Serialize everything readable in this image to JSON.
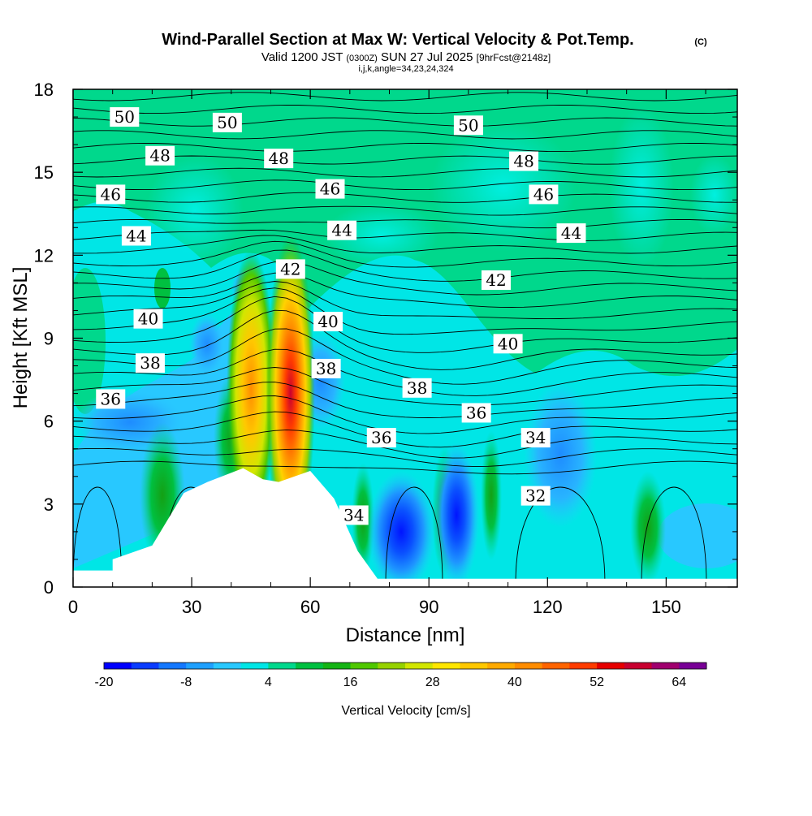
{
  "header": {
    "title": "Wind-Parallel Section at Max W: Vertical Velocity & Pot.Temp.",
    "copyright": "(C)",
    "valid_prefix": "Valid 1200 JST",
    "valid_utc": "(0300Z)",
    "valid_date": "SUN 27 Jul 2025",
    "forecast": "[9hrFcst@2148z]",
    "indices": "i,j,k,angle=34,23,24,324"
  },
  "chart_data": {
    "type": "heatmap",
    "title": "Wind-Parallel Section at Max W: Vertical Velocity & Pot.Temp.",
    "xlabel": "Distance [nm]",
    "ylabel": "Height [Kft MSL]",
    "xlim": [
      0,
      168
    ],
    "ylim": [
      0,
      18
    ],
    "x_ticks": [
      "0",
      "30",
      "60",
      "90",
      "120",
      "150"
    ],
    "y_ticks": [
      "0",
      "3",
      "6",
      "9",
      "12",
      "15",
      "18"
    ],
    "x_tick_values": [
      0,
      30,
      60,
      90,
      120,
      150
    ],
    "y_tick_values": [
      0,
      3,
      6,
      9,
      12,
      15,
      18
    ],
    "colorbar": {
      "label": "Vertical Velocity [cm/s]",
      "min": -20,
      "max": 68,
      "step": 4,
      "tick_labels": [
        "-20",
        "-8",
        "4",
        "16",
        "28",
        "40",
        "52",
        "64"
      ],
      "tick_values": [
        -20,
        -8,
        4,
        16,
        28,
        40,
        52,
        64
      ],
      "colors": [
        "#0000ff",
        "#0a3cff",
        "#1478ff",
        "#1ea0ff",
        "#28c8ff",
        "#00e6e6",
        "#00d88c",
        "#00c040",
        "#14b414",
        "#50c800",
        "#96d200",
        "#d2e600",
        "#ffe600",
        "#ffc800",
        "#ffaa00",
        "#ff8c00",
        "#ff6400",
        "#ff3c00",
        "#e60000",
        "#c80030",
        "#a0006e",
        "#780096"
      ]
    },
    "terrain": [
      [
        0,
        0.6
      ],
      [
        10,
        0.6
      ],
      [
        10,
        1.0
      ],
      [
        20,
        1.5
      ],
      [
        28,
        3.4
      ],
      [
        34,
        3.8
      ],
      [
        43,
        4.3
      ],
      [
        48,
        3.9
      ],
      [
        52,
        3.8
      ],
      [
        60,
        4.2
      ],
      [
        66,
        3.2
      ],
      [
        72,
        1.3
      ],
      [
        77,
        0.3
      ],
      [
        168,
        0.3
      ]
    ],
    "updraft_cores": [
      {
        "x": 45,
        "y": 7.2,
        "w_max": 34
      },
      {
        "x": 55,
        "y": 7.0,
        "w_max": 56
      }
    ],
    "downdraft_cores": [
      {
        "x": 83,
        "y": 2.0,
        "w_min": -18
      },
      {
        "x": 97,
        "y": 2.6,
        "w_min": -16
      }
    ],
    "theta_labels": [
      {
        "text": "50",
        "x": 13,
        "y": 17.0
      },
      {
        "text": "50",
        "x": 39,
        "y": 16.8
      },
      {
        "text": "50",
        "x": 100,
        "y": 16.7
      },
      {
        "text": "48",
        "x": 22,
        "y": 15.6
      },
      {
        "text": "48",
        "x": 52,
        "y": 15.5
      },
      {
        "text": "48",
        "x": 114,
        "y": 15.4
      },
      {
        "text": "46",
        "x": 9.5,
        "y": 14.2
      },
      {
        "text": "46",
        "x": 65,
        "y": 14.4
      },
      {
        "text": "46",
        "x": 119,
        "y": 14.2
      },
      {
        "text": "44",
        "x": 16,
        "y": 12.7
      },
      {
        "text": "44",
        "x": 68,
        "y": 12.9
      },
      {
        "text": "44",
        "x": 126,
        "y": 12.8
      },
      {
        "text": "42",
        "x": 55,
        "y": 11.5
      },
      {
        "text": "42",
        "x": 107,
        "y": 11.1
      },
      {
        "text": "40",
        "x": 19,
        "y": 9.7
      },
      {
        "text": "40",
        "x": 64.5,
        "y": 9.6
      },
      {
        "text": "40",
        "x": 110,
        "y": 8.8
      },
      {
        "text": "38",
        "x": 19.5,
        "y": 8.1
      },
      {
        "text": "38",
        "x": 64,
        "y": 7.9
      },
      {
        "text": "38",
        "x": 87,
        "y": 7.2
      },
      {
        "text": "36",
        "x": 9.5,
        "y": 6.8
      },
      {
        "text": "36",
        "x": 78,
        "y": 5.4
      },
      {
        "text": "36",
        "x": 102,
        "y": 6.3
      },
      {
        "text": "34",
        "x": 71,
        "y": 2.6
      },
      {
        "text": "34",
        "x": 117,
        "y": 5.4
      },
      {
        "text": "32",
        "x": 117,
        "y": 3.3
      }
    ]
  }
}
